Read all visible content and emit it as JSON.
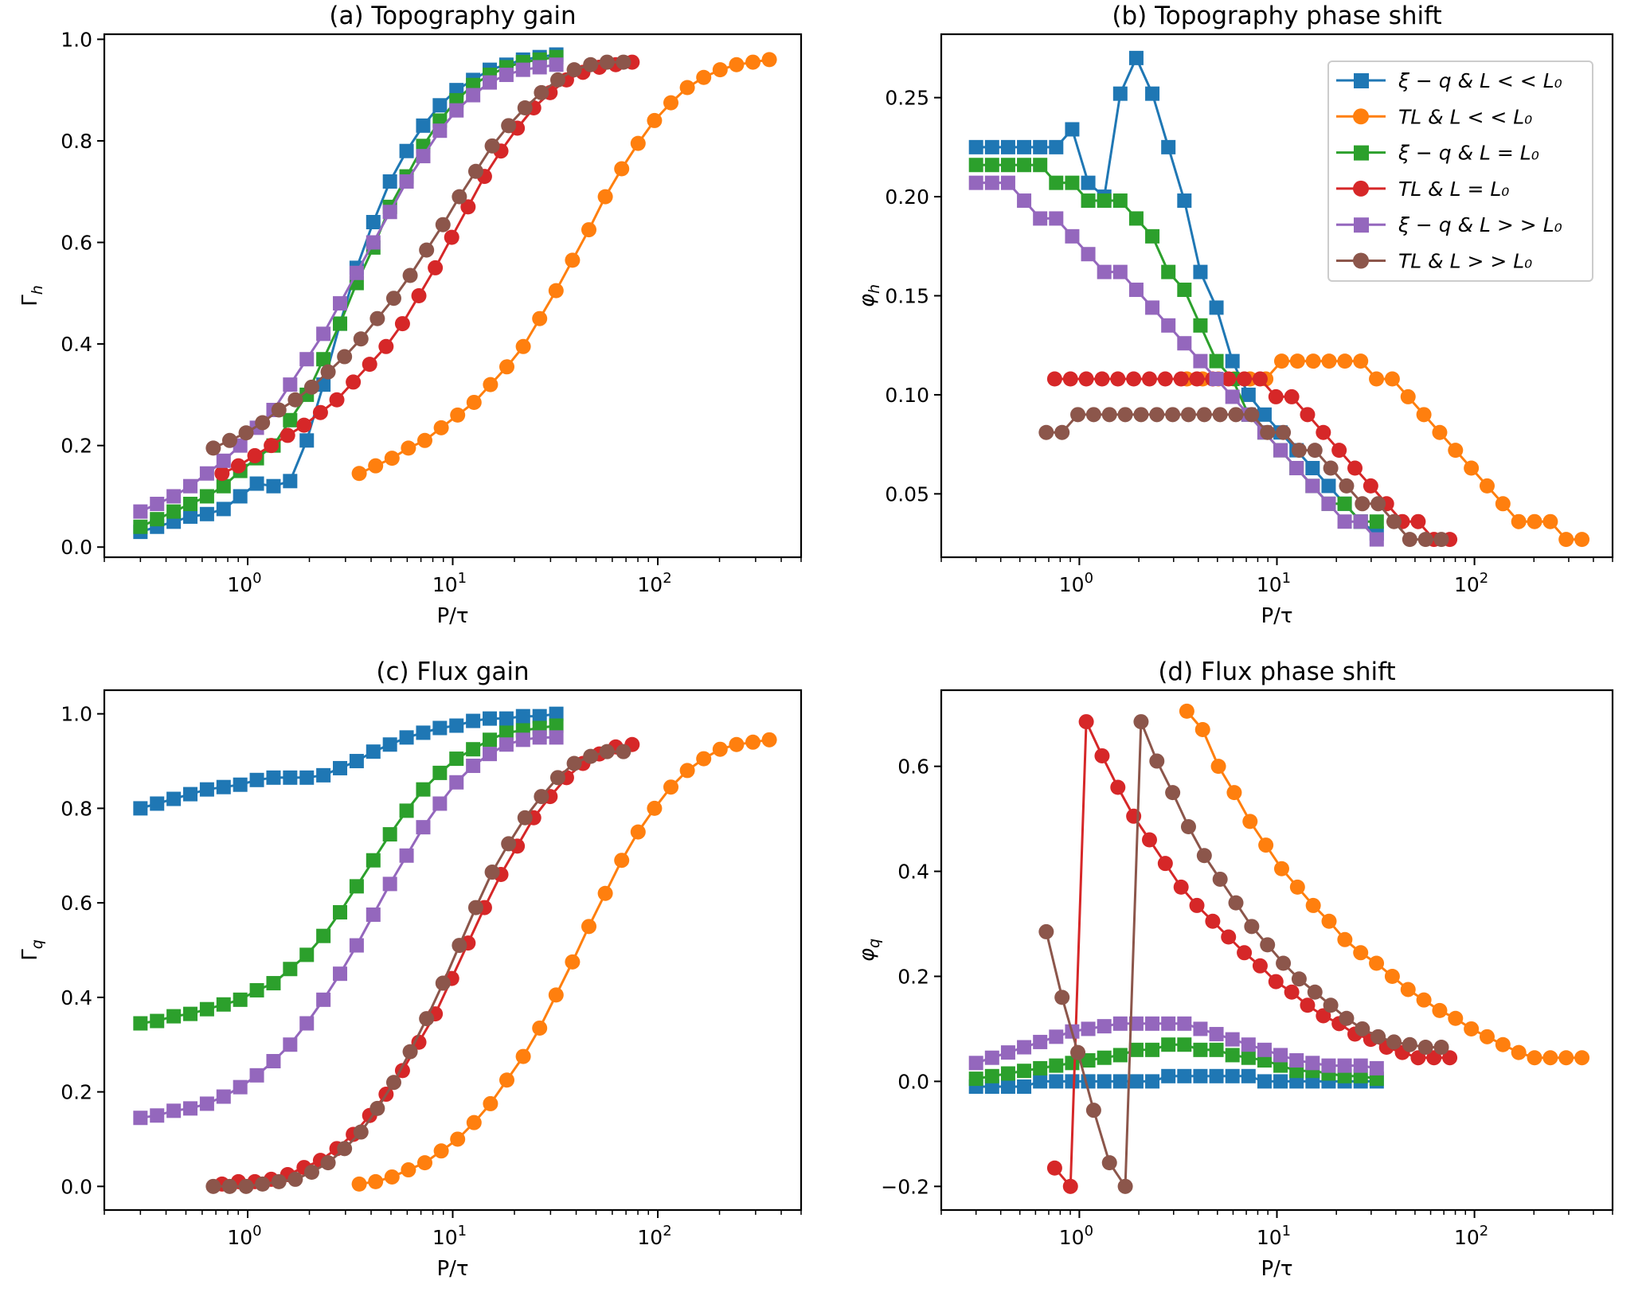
{
  "figure": {
    "x_label": "P/τ",
    "x_ticks": [
      {
        "value": 1,
        "label_base": "10",
        "label_exp": "0"
      },
      {
        "value": 10,
        "label_base": "10",
        "label_exp": "1"
      },
      {
        "value": 100,
        "label_base": "10",
        "label_exp": "2"
      }
    ]
  },
  "legend": {
    "placement": "top-right of panel (b)",
    "entries": [
      {
        "series": "xq_ll",
        "label": "ξ − q & L < < L₀"
      },
      {
        "series": "tl_ll",
        "label": "TL & L < < L₀"
      },
      {
        "series": "xq_eq",
        "label": "ξ − q & L = L₀"
      },
      {
        "series": "tl_eq",
        "label": "TL & L = L₀"
      },
      {
        "series": "xq_gg",
        "label": "ξ − q & L > > L₀"
      },
      {
        "series": "tl_gg",
        "label": "TL & L > > L₀"
      }
    ]
  },
  "series_styles": {
    "xq_ll": {
      "color": "#1f77b4",
      "marker": "square"
    },
    "tl_ll": {
      "color": "#ff7f0e",
      "marker": "circle"
    },
    "xq_eq": {
      "color": "#2ca02c",
      "marker": "square"
    },
    "tl_eq": {
      "color": "#d62728",
      "marker": "circle"
    },
    "xq_gg": {
      "color": "#9467bd",
      "marker": "square"
    },
    "tl_gg": {
      "color": "#8c564b",
      "marker": "circle"
    }
  },
  "chart_data": [
    {
      "id": "a",
      "type": "line",
      "title": "(a) Topography gain",
      "xlabel": "P/τ",
      "ylabel": "Γ_h",
      "ylabel_main": "Γ",
      "ylabel_sub": "h",
      "xscale": "log",
      "xlim": [
        0.2,
        500
      ],
      "ylim": [
        -0.02,
        1.01
      ],
      "yticks": [
        0.0,
        0.2,
        0.4,
        0.6,
        0.8,
        1.0
      ],
      "ytick_labels": [
        "0.0",
        "0.2",
        "0.4",
        "0.6",
        "0.8",
        "1.0"
      ],
      "grid": false,
      "series": [
        {
          "key": "xq_ll",
          "x_start": 0.3,
          "x_end": 32,
          "n": 26,
          "values": [
            0.03,
            0.04,
            0.05,
            0.06,
            0.065,
            0.075,
            0.1,
            0.125,
            0.12,
            0.13,
            0.21,
            0.32,
            0.44,
            0.55,
            0.64,
            0.72,
            0.78,
            0.83,
            0.87,
            0.9,
            0.92,
            0.94,
            0.95,
            0.96,
            0.965,
            0.97
          ]
        },
        {
          "key": "xq_eq",
          "x_start": 0.3,
          "x_end": 32,
          "n": 26,
          "values": [
            0.04,
            0.055,
            0.07,
            0.085,
            0.1,
            0.12,
            0.15,
            0.175,
            0.2,
            0.25,
            0.3,
            0.37,
            0.44,
            0.52,
            0.59,
            0.67,
            0.73,
            0.79,
            0.84,
            0.88,
            0.91,
            0.93,
            0.945,
            0.955,
            0.96,
            0.965
          ]
        },
        {
          "key": "xq_gg",
          "x_start": 0.3,
          "x_end": 32,
          "n": 26,
          "values": [
            0.07,
            0.085,
            0.1,
            0.12,
            0.145,
            0.17,
            0.2,
            0.235,
            0.27,
            0.32,
            0.37,
            0.42,
            0.48,
            0.54,
            0.6,
            0.66,
            0.72,
            0.77,
            0.82,
            0.86,
            0.89,
            0.915,
            0.93,
            0.94,
            0.945,
            0.95
          ]
        },
        {
          "key": "tl_ll",
          "x_start": 3.5,
          "x_end": 350,
          "n": 26,
          "values": [
            0.145,
            0.16,
            0.175,
            0.195,
            0.21,
            0.235,
            0.26,
            0.285,
            0.32,
            0.355,
            0.395,
            0.45,
            0.505,
            0.565,
            0.625,
            0.69,
            0.745,
            0.795,
            0.84,
            0.875,
            0.905,
            0.925,
            0.94,
            0.95,
            0.955,
            0.96
          ]
        },
        {
          "key": "tl_eq",
          "x_start": 0.75,
          "x_end": 75,
          "n": 26,
          "values": [
            0.145,
            0.16,
            0.18,
            0.2,
            0.22,
            0.24,
            0.265,
            0.29,
            0.325,
            0.36,
            0.395,
            0.44,
            0.495,
            0.55,
            0.61,
            0.67,
            0.73,
            0.78,
            0.825,
            0.865,
            0.895,
            0.92,
            0.935,
            0.945,
            0.95,
            0.955
          ]
        },
        {
          "key": "tl_gg",
          "x_start": 0.68,
          "x_end": 68,
          "n": 26,
          "values": [
            0.195,
            0.21,
            0.225,
            0.245,
            0.27,
            0.29,
            0.315,
            0.345,
            0.375,
            0.41,
            0.45,
            0.49,
            0.535,
            0.585,
            0.635,
            0.69,
            0.74,
            0.79,
            0.83,
            0.865,
            0.895,
            0.92,
            0.94,
            0.95,
            0.955,
            0.955
          ]
        }
      ]
    },
    {
      "id": "b",
      "type": "line",
      "title": "(b) Topography phase shift",
      "xlabel": "P/τ",
      "ylabel": "φ_h",
      "ylabel_main": "φ",
      "ylabel_sub": "h",
      "xscale": "log",
      "xlim": [
        0.2,
        500
      ],
      "ylim": [
        0.018,
        0.282
      ],
      "yticks": [
        0.05,
        0.1,
        0.15,
        0.2,
        0.25
      ],
      "ytick_labels": [
        "0.05",
        "0.10",
        "0.15",
        "0.20",
        "0.25"
      ],
      "grid": false,
      "series": [
        {
          "key": "xq_ll",
          "x_start": 0.3,
          "x_end": 32,
          "n": 26,
          "values": [
            0.225,
            0.225,
            0.225,
            0.225,
            0.225,
            0.225,
            0.234,
            0.207,
            0.2,
            0.252,
            0.27,
            0.252,
            0.225,
            0.198,
            0.162,
            0.144,
            0.117,
            0.1,
            0.09,
            0.081,
            0.072,
            0.063,
            0.054,
            0.045,
            0.036,
            0.03
          ]
        },
        {
          "key": "xq_eq",
          "x_start": 0.3,
          "x_end": 32,
          "n": 26,
          "values": [
            0.216,
            0.216,
            0.216,
            0.216,
            0.216,
            0.207,
            0.207,
            0.198,
            0.198,
            0.198,
            0.189,
            0.18,
            0.162,
            0.153,
            0.135,
            0.117,
            0.108,
            0.09,
            0.081,
            0.072,
            0.063,
            0.054,
            0.045,
            0.045,
            0.036,
            0.036
          ]
        },
        {
          "key": "xq_gg",
          "x_start": 0.3,
          "x_end": 32,
          "n": 26,
          "values": [
            0.207,
            0.207,
            0.207,
            0.198,
            0.189,
            0.189,
            0.18,
            0.171,
            0.162,
            0.162,
            0.153,
            0.144,
            0.135,
            0.126,
            0.117,
            0.108,
            0.099,
            0.09,
            0.081,
            0.072,
            0.063,
            0.054,
            0.045,
            0.036,
            0.036,
            0.027
          ]
        },
        {
          "key": "tl_ll",
          "x_start": 3.5,
          "x_end": 350,
          "n": 26,
          "values": [
            0.108,
            0.108,
            0.108,
            0.108,
            0.108,
            0.108,
            0.117,
            0.117,
            0.117,
            0.117,
            0.117,
            0.117,
            0.108,
            0.108,
            0.099,
            0.09,
            0.081,
            0.072,
            0.063,
            0.054,
            0.045,
            0.036,
            0.036,
            0.036,
            0.027,
            0.027
          ]
        },
        {
          "key": "tl_eq",
          "x_start": 0.75,
          "x_end": 75,
          "n": 26,
          "values": [
            0.108,
            0.108,
            0.108,
            0.108,
            0.108,
            0.108,
            0.108,
            0.108,
            0.108,
            0.108,
            0.108,
            0.108,
            0.108,
            0.108,
            0.099,
            0.099,
            0.09,
            0.081,
            0.072,
            0.063,
            0.054,
            0.045,
            0.036,
            0.036,
            0.027,
            0.027
          ]
        },
        {
          "key": "tl_gg",
          "x_start": 0.68,
          "x_end": 68,
          "n": 26,
          "values": [
            0.081,
            0.081,
            0.09,
            0.09,
            0.09,
            0.09,
            0.09,
            0.09,
            0.09,
            0.09,
            0.09,
            0.09,
            0.09,
            0.09,
            0.081,
            0.081,
            0.072,
            0.072,
            0.063,
            0.054,
            0.045,
            0.045,
            0.036,
            0.027,
            0.027,
            0.027
          ]
        }
      ]
    },
    {
      "id": "c",
      "type": "line",
      "title": "(c) Flux gain",
      "xlabel": "P/τ",
      "ylabel": "Γ_q",
      "ylabel_main": "Γ",
      "ylabel_sub": "q",
      "xscale": "log",
      "xlim": [
        0.2,
        500
      ],
      "ylim": [
        -0.05,
        1.05
      ],
      "yticks": [
        0.0,
        0.2,
        0.4,
        0.6,
        0.8,
        1.0
      ],
      "ytick_labels": [
        "0.0",
        "0.2",
        "0.4",
        "0.6",
        "0.8",
        "1.0"
      ],
      "grid": false,
      "series": [
        {
          "key": "xq_ll",
          "x_start": 0.3,
          "x_end": 32,
          "n": 26,
          "values": [
            0.8,
            0.81,
            0.82,
            0.83,
            0.84,
            0.845,
            0.85,
            0.86,
            0.865,
            0.865,
            0.865,
            0.87,
            0.885,
            0.9,
            0.92,
            0.935,
            0.95,
            0.96,
            0.97,
            0.975,
            0.985,
            0.99,
            0.99,
            0.995,
            0.995,
            1.0
          ]
        },
        {
          "key": "xq_eq",
          "x_start": 0.3,
          "x_end": 32,
          "n": 26,
          "values": [
            0.345,
            0.35,
            0.36,
            0.365,
            0.375,
            0.385,
            0.395,
            0.415,
            0.43,
            0.46,
            0.49,
            0.53,
            0.58,
            0.635,
            0.69,
            0.745,
            0.795,
            0.84,
            0.875,
            0.905,
            0.925,
            0.945,
            0.96,
            0.965,
            0.97,
            0.975
          ]
        },
        {
          "key": "xq_gg",
          "x_start": 0.3,
          "x_end": 32,
          "n": 26,
          "values": [
            0.145,
            0.15,
            0.16,
            0.165,
            0.175,
            0.19,
            0.21,
            0.235,
            0.265,
            0.3,
            0.345,
            0.395,
            0.45,
            0.51,
            0.575,
            0.64,
            0.7,
            0.76,
            0.81,
            0.855,
            0.89,
            0.915,
            0.935,
            0.945,
            0.95,
            0.95
          ]
        },
        {
          "key": "tl_ll",
          "x_start": 3.5,
          "x_end": 350,
          "n": 26,
          "values": [
            0.005,
            0.01,
            0.02,
            0.035,
            0.05,
            0.075,
            0.1,
            0.135,
            0.175,
            0.225,
            0.275,
            0.335,
            0.405,
            0.475,
            0.55,
            0.62,
            0.69,
            0.75,
            0.8,
            0.845,
            0.88,
            0.905,
            0.925,
            0.935,
            0.94,
            0.945
          ]
        },
        {
          "key": "tl_eq",
          "x_start": 0.75,
          "x_end": 75,
          "n": 26,
          "values": [
            0.005,
            0.01,
            0.01,
            0.015,
            0.025,
            0.04,
            0.055,
            0.08,
            0.11,
            0.15,
            0.195,
            0.245,
            0.305,
            0.365,
            0.44,
            0.515,
            0.59,
            0.66,
            0.72,
            0.78,
            0.825,
            0.865,
            0.895,
            0.915,
            0.93,
            0.935
          ]
        },
        {
          "key": "tl_gg",
          "x_start": 0.68,
          "x_end": 68,
          "n": 26,
          "values": [
            0.0,
            0.0,
            0.0,
            0.005,
            0.01,
            0.015,
            0.03,
            0.05,
            0.08,
            0.115,
            0.165,
            0.22,
            0.285,
            0.355,
            0.43,
            0.51,
            0.59,
            0.665,
            0.725,
            0.78,
            0.825,
            0.865,
            0.895,
            0.91,
            0.92,
            0.92
          ]
        }
      ]
    },
    {
      "id": "d",
      "type": "line",
      "title": "(d) Flux phase shift",
      "xlabel": "P/τ",
      "ylabel": "φ_q",
      "ylabel_main": "φ",
      "ylabel_sub": "q",
      "xscale": "log",
      "xlim": [
        0.2,
        500
      ],
      "ylim": [
        -0.245,
        0.745
      ],
      "yticks": [
        -0.2,
        0.0,
        0.2,
        0.4,
        0.6
      ],
      "ytick_labels": [
        "−0.2",
        "0.0",
        "0.2",
        "0.4",
        "0.6"
      ],
      "grid": false,
      "series": [
        {
          "key": "xq_ll",
          "x_start": 0.3,
          "x_end": 32,
          "n": 26,
          "values": [
            -0.01,
            -0.01,
            -0.01,
            -0.01,
            0.0,
            0.0,
            0.0,
            0.0,
            0.0,
            0.0,
            0.0,
            0.0,
            0.01,
            0.01,
            0.01,
            0.01,
            0.01,
            0.01,
            0.0,
            0.0,
            0.0,
            0.0,
            0.0,
            0.0,
            0.0,
            0.0
          ]
        },
        {
          "key": "xq_eq",
          "x_start": 0.3,
          "x_end": 32,
          "n": 26,
          "values": [
            0.005,
            0.01,
            0.015,
            0.02,
            0.025,
            0.03,
            0.035,
            0.04,
            0.045,
            0.05,
            0.06,
            0.06,
            0.07,
            0.07,
            0.06,
            0.06,
            0.05,
            0.045,
            0.04,
            0.03,
            0.02,
            0.02,
            0.015,
            0.01,
            0.01,
            0.005
          ]
        },
        {
          "key": "xq_gg",
          "x_start": 0.3,
          "x_end": 32,
          "n": 26,
          "values": [
            0.035,
            0.045,
            0.055,
            0.065,
            0.075,
            0.085,
            0.095,
            0.1,
            0.105,
            0.11,
            0.11,
            0.11,
            0.11,
            0.11,
            0.1,
            0.09,
            0.08,
            0.07,
            0.06,
            0.05,
            0.04,
            0.035,
            0.03,
            0.03,
            0.03,
            0.025
          ]
        },
        {
          "key": "tl_ll",
          "x_start": 3.5,
          "x_end": 350,
          "n": 26,
          "values": [
            0.705,
            0.67,
            0.6,
            0.55,
            0.495,
            0.45,
            0.405,
            0.37,
            0.335,
            0.305,
            0.27,
            0.245,
            0.225,
            0.2,
            0.175,
            0.155,
            0.135,
            0.12,
            0.1,
            0.085,
            0.07,
            0.055,
            0.045,
            0.045,
            0.045,
            0.045
          ]
        },
        {
          "key": "tl_eq",
          "x_start": 0.75,
          "x_end": 75,
          "n": 26,
          "values": [
            -0.165,
            -0.2,
            0.685,
            0.62,
            0.56,
            0.505,
            0.46,
            0.415,
            0.37,
            0.335,
            0.305,
            0.275,
            0.245,
            0.22,
            0.19,
            0.17,
            0.145,
            0.125,
            0.11,
            0.09,
            0.08,
            0.065,
            0.055,
            0.045,
            0.045,
            0.045
          ]
        },
        {
          "key": "tl_gg",
          "x_start": 0.68,
          "x_end": 68,
          "n": 26,
          "values": [
            0.285,
            0.16,
            0.055,
            -0.055,
            -0.155,
            -0.2,
            0.685,
            0.61,
            0.55,
            0.485,
            0.43,
            0.385,
            0.34,
            0.295,
            0.26,
            0.225,
            0.195,
            0.17,
            0.145,
            0.12,
            0.1,
            0.085,
            0.075,
            0.07,
            0.065,
            0.065
          ]
        }
      ]
    }
  ]
}
